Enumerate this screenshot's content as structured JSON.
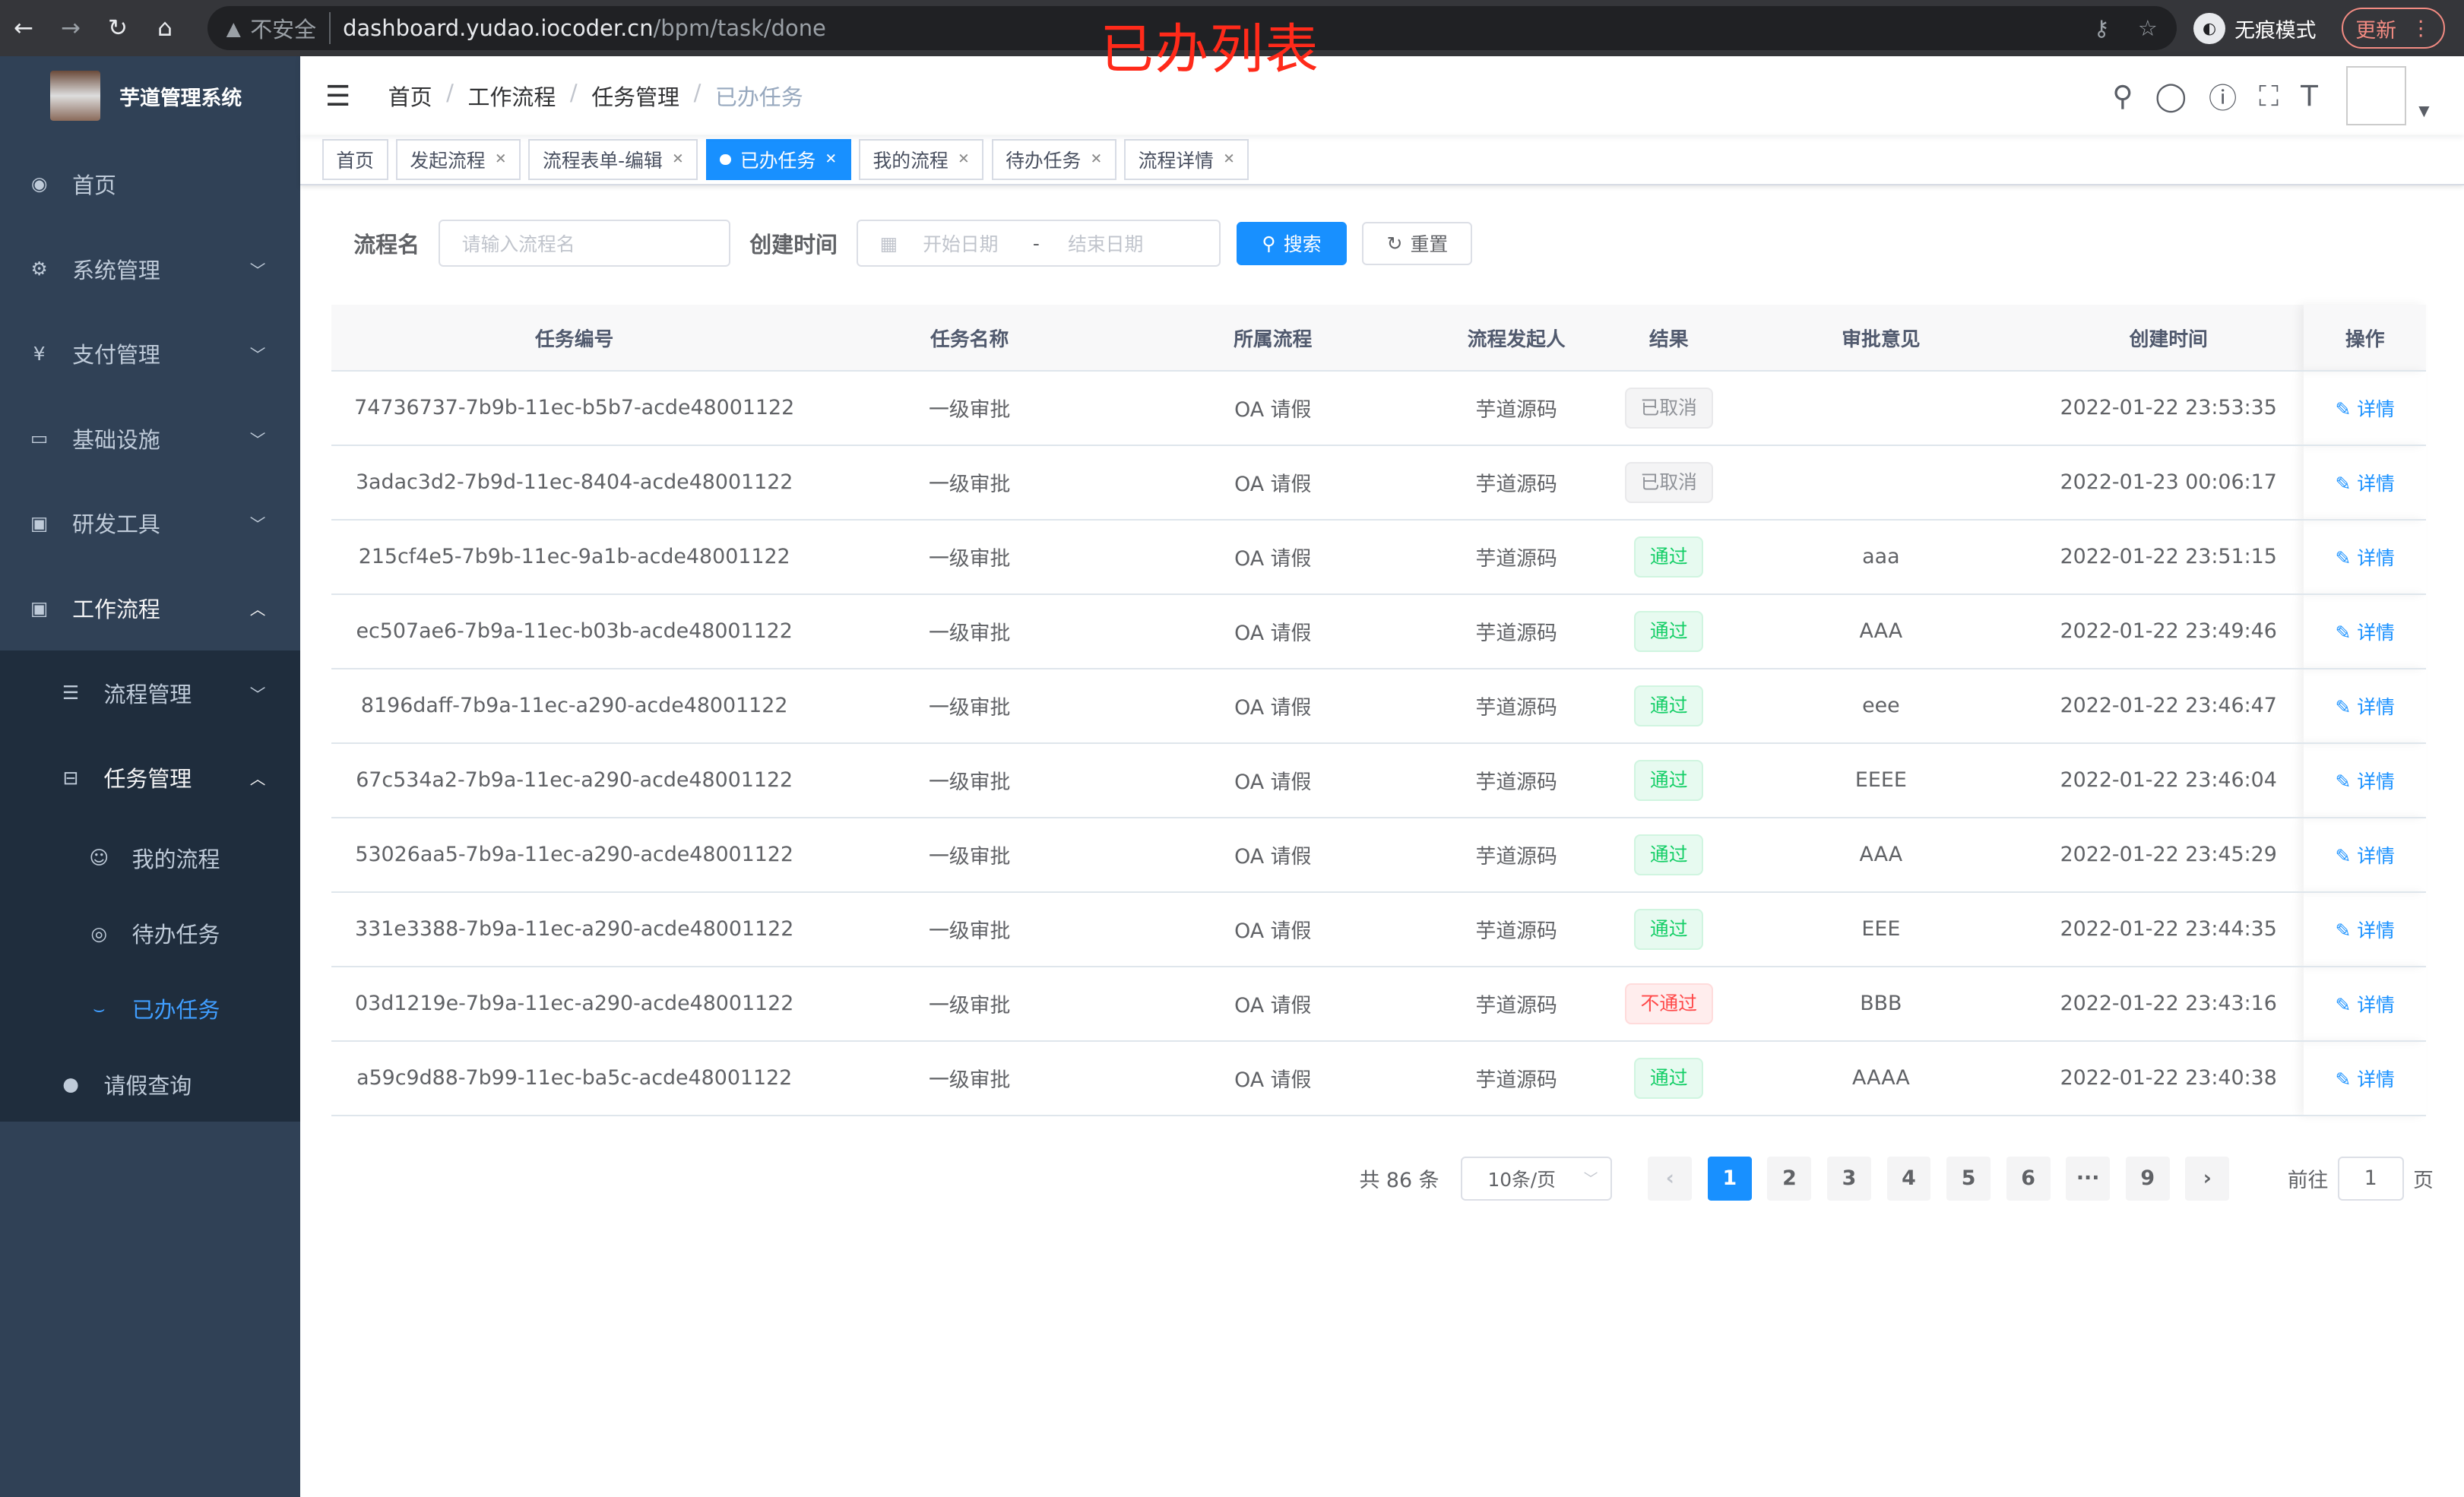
{
  "browser": {
    "insecure": "不安全",
    "host": "dashboard.yudao.iocoder.cn",
    "path": "/bpm/task/done",
    "incognito": "无痕模式",
    "update": "更新"
  },
  "overlay_title": "已办列表",
  "sidebar": {
    "title": "芋道管理系统",
    "items": [
      {
        "label": "首页",
        "icon": "dashboard-icon"
      },
      {
        "label": "系统管理",
        "icon": "gear-icon"
      },
      {
        "label": "支付管理",
        "icon": "yen-icon"
      },
      {
        "label": "基础设施",
        "icon": "monitor-icon"
      },
      {
        "label": "研发工具",
        "icon": "toolbox-icon"
      },
      {
        "label": "工作流程",
        "icon": "toolbox-icon"
      }
    ],
    "sub": [
      {
        "label": "流程管理"
      },
      {
        "label": "任务管理"
      }
    ],
    "leaf": [
      {
        "label": "我的流程"
      },
      {
        "label": "待办任务"
      },
      {
        "label": "已办任务"
      }
    ],
    "leave": "请假查询"
  },
  "breadcrumb": [
    "首页",
    "工作流程",
    "任务管理",
    "已办任务"
  ],
  "tags": [
    {
      "label": "首页"
    },
    {
      "label": "发起流程"
    },
    {
      "label": "流程表单-编辑"
    },
    {
      "label": "已办任务",
      "active": true
    },
    {
      "label": "我的流程"
    },
    {
      "label": "待办任务"
    },
    {
      "label": "流程详情"
    }
  ],
  "filter": {
    "name_label": "流程名",
    "name_placeholder": "请输入流程名",
    "time_label": "创建时间",
    "start_placeholder": "开始日期",
    "sep": "-",
    "end_placeholder": "结束日期",
    "search": "搜索",
    "reset": "重置"
  },
  "table": {
    "columns": [
      "任务编号",
      "任务名称",
      "所属流程",
      "流程发起人",
      "结果",
      "审批意见",
      "创建时间",
      "操作"
    ],
    "action": "详情",
    "rows": [
      [
        "74736737-7b9b-11ec-b5b7-acde48001122",
        "一级审批",
        "OA 请假",
        "芋道源码",
        "已取消",
        "",
        "2022-01-22 23:53:35"
      ],
      [
        "3adac3d2-7b9d-11ec-8404-acde48001122",
        "一级审批",
        "OA 请假",
        "芋道源码",
        "已取消",
        "",
        "2022-01-23 00:06:17"
      ],
      [
        "215cf4e5-7b9b-11ec-9a1b-acde48001122",
        "一级审批",
        "OA 请假",
        "芋道源码",
        "通过",
        "aaa",
        "2022-01-22 23:51:15"
      ],
      [
        "ec507ae6-7b9a-11ec-b03b-acde48001122",
        "一级审批",
        "OA 请假",
        "芋道源码",
        "通过",
        "AAA",
        "2022-01-22 23:49:46"
      ],
      [
        "8196daff-7b9a-11ec-a290-acde48001122",
        "一级审批",
        "OA 请假",
        "芋道源码",
        "通过",
        "eee",
        "2022-01-22 23:46:47"
      ],
      [
        "67c534a2-7b9a-11ec-a290-acde48001122",
        "一级审批",
        "OA 请假",
        "芋道源码",
        "通过",
        "EEEE",
        "2022-01-22 23:46:04"
      ],
      [
        "53026aa5-7b9a-11ec-a290-acde48001122",
        "一级审批",
        "OA 请假",
        "芋道源码",
        "通过",
        "AAA",
        "2022-01-22 23:45:29"
      ],
      [
        "331e3388-7b9a-11ec-a290-acde48001122",
        "一级审批",
        "OA 请假",
        "芋道源码",
        "通过",
        "EEE",
        "2022-01-22 23:44:35"
      ],
      [
        "03d1219e-7b9a-11ec-a290-acde48001122",
        "一级审批",
        "OA 请假",
        "芋道源码",
        "不通过",
        "BBB",
        "2022-01-22 23:43:16"
      ],
      [
        "a59c9d88-7b99-11ec-ba5c-acde48001122",
        "一级审批",
        "OA 请假",
        "芋道源码",
        "通过",
        "AAAA",
        "2022-01-22 23:40:38"
      ]
    ]
  },
  "pagination": {
    "total": "共 86 条",
    "size": "10条/页",
    "pages": [
      "1",
      "2",
      "3",
      "4",
      "5",
      "6",
      "···",
      "9"
    ],
    "current": "1",
    "goto": "前往",
    "goto_value": "1",
    "page_unit": "页"
  },
  "colors": {
    "sidebar": "#304156",
    "accent": "#1890ff",
    "success": "#13ce66",
    "danger": "#ff4949"
  }
}
